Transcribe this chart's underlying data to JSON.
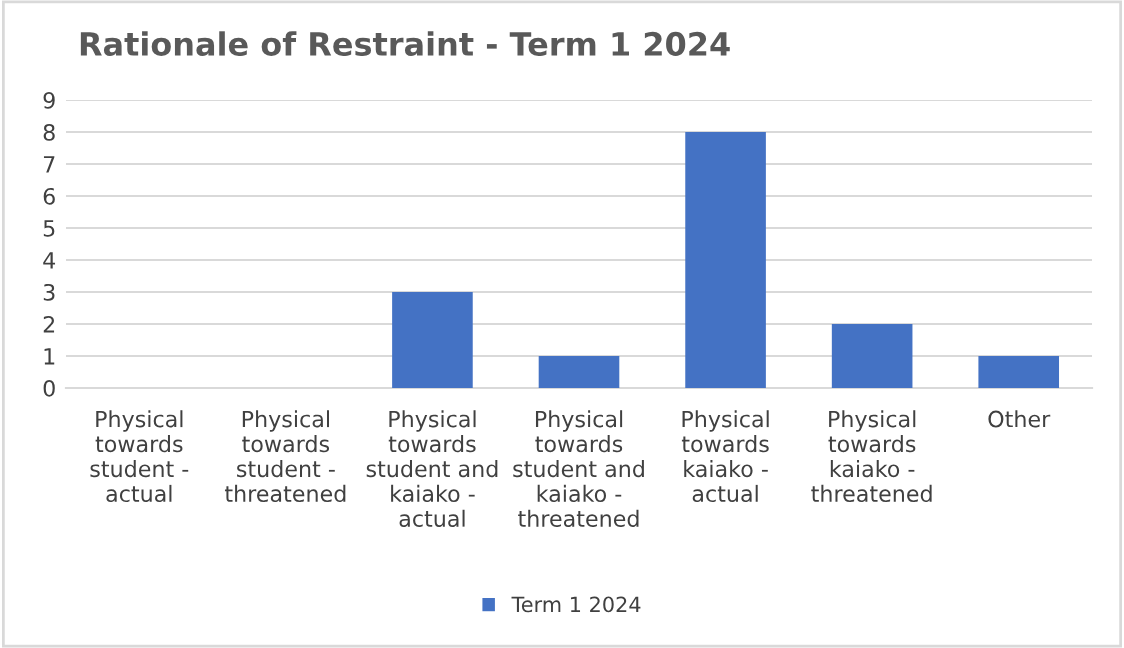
{
  "chart_data": {
    "type": "bar",
    "title": "Rationale of Restraint - Term 1 2024",
    "categories": [
      "Physical towards student - actual",
      "Physical towards student - threatened",
      "Physical towards student and kaiako - actual",
      "Physical towards student and kaiako - threatened",
      "Physical towards kaiako - actual",
      "Physical towards kaiako - threatened",
      "Other"
    ],
    "series": [
      {
        "name": "Term 1 2024",
        "color": "#4472c4",
        "values": [
          0,
          0,
          3,
          1,
          8,
          2,
          1
        ]
      }
    ],
    "ylim": [
      0,
      9
    ],
    "yticks": [
      0,
      1,
      2,
      3,
      4,
      5,
      6,
      7,
      8,
      9
    ],
    "grid": "y",
    "legend": "bottom"
  }
}
